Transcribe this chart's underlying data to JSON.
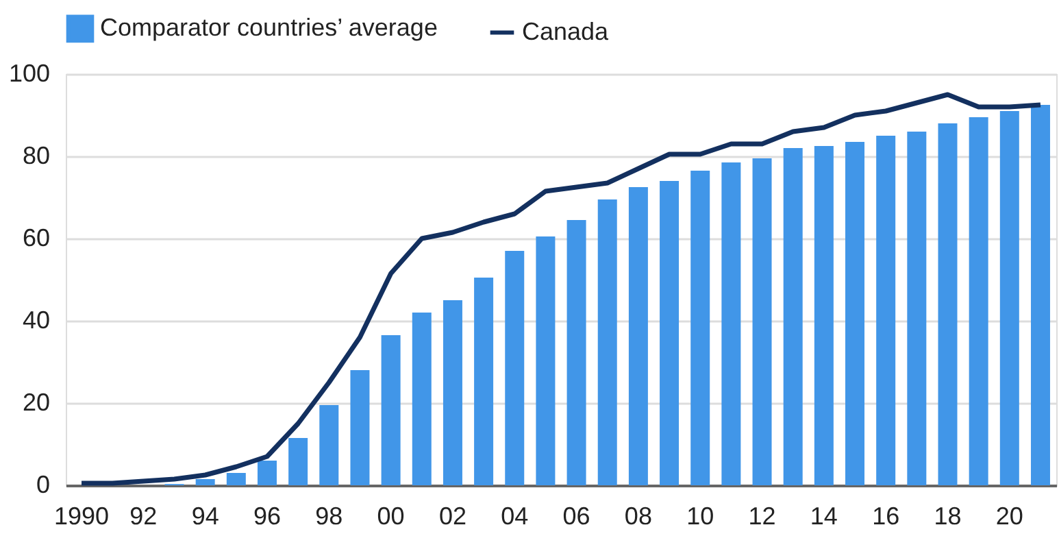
{
  "chart_data": {
    "type": "bar",
    "categories": [
      "1990",
      null,
      "92",
      null,
      "94",
      null,
      "96",
      null,
      "98",
      null,
      "00",
      null,
      "02",
      null,
      "04",
      null,
      "06",
      null,
      "08",
      null,
      "10",
      null,
      "12",
      null,
      "14",
      null,
      "16",
      null,
      "18",
      null,
      "20",
      null
    ],
    "series": [
      {
        "name": "Comparator countries’ average",
        "color": "#4196e8",
        "values": [
          0,
          0,
          0,
          0.3,
          1.5,
          3,
          6,
          11.5,
          19.5,
          28,
          36.5,
          42,
          45,
          50.5,
          57,
          60.5,
          64.5,
          69.5,
          72.5,
          74,
          76.5,
          78.5,
          79.5,
          82,
          82.5,
          83.5,
          85,
          86,
          88,
          89.5,
          91,
          92.5
        ]
      },
      {
        "name": "Canada",
        "type": "line",
        "color": "#13305f",
        "values": [
          0.5,
          0.5,
          1,
          1.5,
          2.5,
          4.5,
          7,
          15,
          25,
          36,
          51.5,
          60,
          61.5,
          64,
          66,
          71.5,
          72.5,
          73.5,
          77,
          80.5,
          80.5,
          83,
          83,
          86,
          87,
          90,
          91,
          93,
          95,
          92,
          92,
          92.5
        ]
      }
    ],
    "ylim": [
      0,
      100
    ],
    "yticks": [
      0,
      20,
      40,
      60,
      80,
      100
    ],
    "grid": "y",
    "legend": "top left",
    "line_style": "solid"
  }
}
